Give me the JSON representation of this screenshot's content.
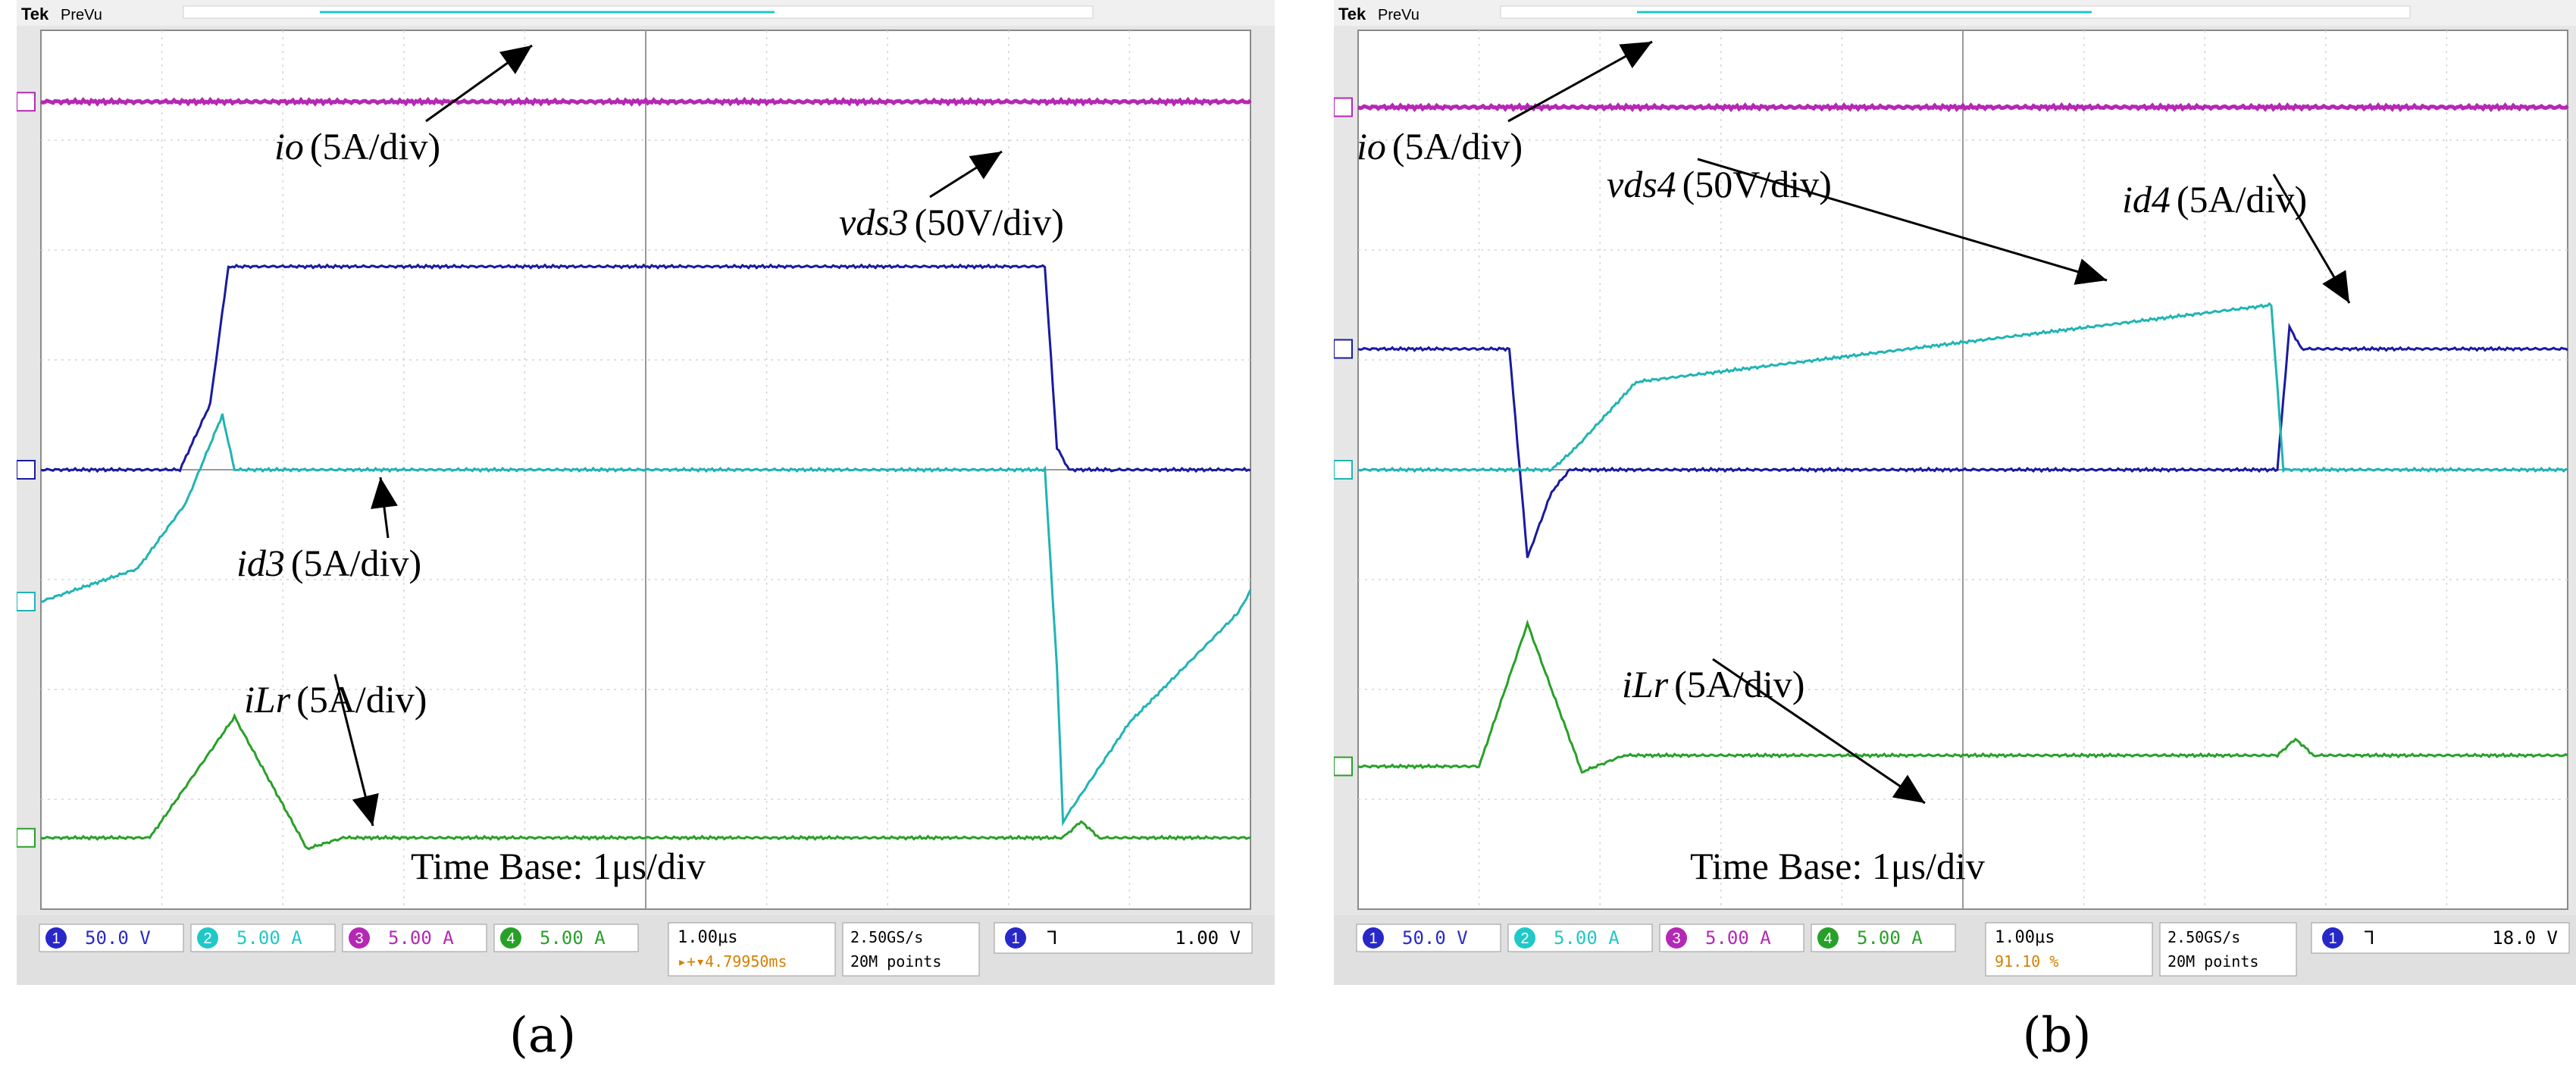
{
  "figure": {
    "panels": [
      {
        "label": "(a)",
        "header": {
          "brand": "Tek",
          "mode": "PreVu"
        },
        "annotations": [
          {
            "symbol": "io",
            "unit": "(5A/div)"
          },
          {
            "symbol": "vds3",
            "unit": "(50V/div)"
          },
          {
            "symbol": "id3",
            "unit": "(5A/div)"
          },
          {
            "symbol": "iLr",
            "unit": "(5A/div)"
          }
        ],
        "timebase_text": "Time Base: 1μs/div",
        "status": {
          "channels": [
            {
              "num": "1",
              "scale": "50.0 V",
              "color": "#2828c8"
            },
            {
              "num": "2",
              "scale": "5.00 A",
              "color": "#20c8c8"
            },
            {
              "num": "3",
              "scale": "5.00 A",
              "color": "#b428b4"
            },
            {
              "num": "4",
              "scale": "5.00 A",
              "color": "#28a028"
            }
          ],
          "horizontal": "1.00μs",
          "trigger_pos": "▸+▾4.79950ms",
          "sample_rate": "2.50GS/s",
          "record_length": "20M points",
          "trigger_ch": "1",
          "trigger_symbol": "⅂",
          "trigger_level": "1.00 V"
        }
      },
      {
        "label": "(b)",
        "header": {
          "brand": "Tek",
          "mode": "PreVu"
        },
        "annotations": [
          {
            "symbol": "io",
            "unit": "(5A/div)"
          },
          {
            "symbol": "vds4",
            "unit": "(50V/div)"
          },
          {
            "symbol": "id4",
            "unit": "(5A/div)"
          },
          {
            "symbol": "iLr",
            "unit": "(5A/div)"
          }
        ],
        "timebase_text": "Time Base: 1μs/div",
        "status": {
          "channels": [
            {
              "num": "1",
              "scale": "50.0 V",
              "color": "#2828c8"
            },
            {
              "num": "2",
              "scale": "5.00 A",
              "color": "#20c8c8"
            },
            {
              "num": "3",
              "scale": "5.00 A",
              "color": "#b428b4"
            },
            {
              "num": "4",
              "scale": "5.00 A",
              "color": "#28a028"
            }
          ],
          "horizontal": "1.00μs",
          "trigger_pos": "91.10 %",
          "sample_rate": "2.50GS/s",
          "record_length": "20M points",
          "trigger_ch": "1",
          "trigger_symbol": "⅂",
          "trigger_level": "18.0 V"
        }
      }
    ]
  },
  "chart_data": [
    {
      "type": "line",
      "title": "(a)",
      "x_unit": "μs",
      "xlim": [
        0,
        10
      ],
      "ylim": [
        -4,
        4
      ],
      "grid": true,
      "series": [
        {
          "name": "io",
          "color": "#b428b4",
          "x": [
            0,
            10
          ],
          "y": [
            3.35,
            3.35
          ]
        },
        {
          "name": "vds3",
          "color": "#1a1aa0",
          "x": [
            0,
            1.15,
            1.4,
            1.55,
            8.3,
            8.4,
            8.5,
            8.85,
            9.9,
            10
          ],
          "y": [
            0,
            0,
            0.6,
            1.85,
            1.85,
            0.2,
            0,
            0,
            0,
            0
          ]
        },
        {
          "name": "id3",
          "color": "#20b4b4",
          "x": [
            0,
            0.8,
            1.2,
            1.5,
            1.6,
            8.3,
            8.4,
            8.45,
            9.0,
            9.9,
            10
          ],
          "y": [
            -1.2,
            -0.9,
            -0.3,
            0.5,
            0,
            0,
            -1.8,
            -3.2,
            -2.3,
            -1.3,
            -1.1
          ]
        },
        {
          "name": "iLr",
          "color": "#28a028",
          "x": [
            0,
            0.9,
            1.6,
            2.2,
            2.5,
            8.45,
            8.6,
            8.75,
            10
          ],
          "y": [
            -3.35,
            -3.35,
            -2.25,
            -3.45,
            -3.35,
            -3.35,
            -3.2,
            -3.35,
            -3.35
          ]
        }
      ]
    },
    {
      "type": "line",
      "title": "(b)",
      "x_unit": "μs",
      "xlim": [
        0,
        10
      ],
      "ylim": [
        -4,
        4
      ],
      "grid": true,
      "series": [
        {
          "name": "io",
          "color": "#b428b4",
          "x": [
            0,
            10
          ],
          "y": [
            3.3,
            3.3
          ]
        },
        {
          "name": "vds4",
          "color": "#1a1aa0",
          "x": [
            0,
            1.25,
            1.4,
            1.6,
            1.75,
            7.6,
            7.7,
            7.8,
            10
          ],
          "y": [
            1.1,
            1.1,
            -0.8,
            -0.2,
            0,
            0,
            1.3,
            1.1,
            1.1
          ]
        },
        {
          "name": "id4",
          "color": "#20b4b4",
          "x": [
            0,
            1.6,
            1.8,
            2.3,
            7.55,
            7.65,
            7.75,
            10
          ],
          "y": [
            0,
            0,
            0.2,
            0.8,
            1.5,
            0,
            0,
            0
          ]
        },
        {
          "name": "iLr",
          "color": "#28a028",
          "x": [
            0,
            1.0,
            1.4,
            1.85,
            2.2,
            7.6,
            7.75,
            7.9,
            10
          ],
          "y": [
            -2.7,
            -2.7,
            -1.4,
            -2.75,
            -2.6,
            -2.6,
            -2.45,
            -2.6,
            -2.6
          ]
        }
      ]
    }
  ]
}
